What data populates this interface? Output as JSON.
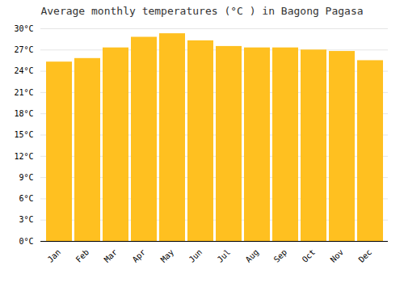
{
  "chart_data": {
    "type": "bar",
    "title": "Average monthly temperatures (°C ) in Bagong Pagasa",
    "categories": [
      "Jan",
      "Feb",
      "Mar",
      "Apr",
      "May",
      "Jun",
      "Jul",
      "Aug",
      "Sep",
      "Oct",
      "Nov",
      "Dec"
    ],
    "values": [
      25.3,
      25.8,
      27.3,
      28.8,
      29.3,
      28.3,
      27.5,
      27.3,
      27.3,
      27.0,
      26.8,
      25.5
    ],
    "color": "#FFC020",
    "ylim": [
      0,
      30
    ],
    "yticks": [
      {
        "value": 0,
        "label": "0°C"
      },
      {
        "value": 3,
        "label": "3°C"
      },
      {
        "value": 6,
        "label": "6°C"
      },
      {
        "value": 9,
        "label": "9°C"
      },
      {
        "value": 12,
        "label": "12°C"
      },
      {
        "value": 15,
        "label": "15°C"
      },
      {
        "value": 18,
        "label": "18°C"
      },
      {
        "value": 21,
        "label": "21°C"
      },
      {
        "value": 24,
        "label": "24°C"
      },
      {
        "value": 27,
        "label": "27°C"
      },
      {
        "value": 30,
        "label": "30°C"
      }
    ],
    "grid": true
  }
}
